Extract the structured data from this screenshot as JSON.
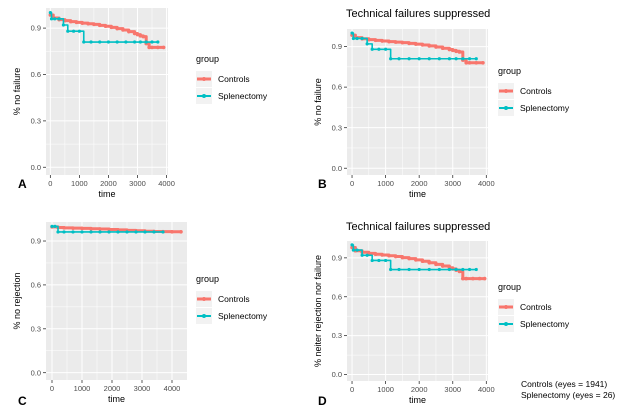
{
  "colors": {
    "controls": "#F8766D",
    "splenectomy": "#00BFC4",
    "panel_bg": "#EBEBEB",
    "grid": "#FFFFFF",
    "axis_text": "#4D4D4D",
    "title_text": "#000000"
  },
  "note": {
    "controls": "Controls (eyes = 1941)",
    "splenectomy": "Splenectomy (eyes = 26)"
  },
  "chart_data": [
    {
      "panel_label": "A",
      "type": "line",
      "title": "",
      "xlabel": "time",
      "ylabel": "% no failure",
      "xlim": [
        -150,
        4050
      ],
      "ylim": [
        -0.05,
        1.03
      ],
      "x_ticks": [
        0,
        1000,
        2000,
        3000,
        4000
      ],
      "y_ticks": [
        0.0,
        0.3,
        0.6,
        0.9
      ],
      "y_tick_labels": [
        "0.0",
        "0.3",
        "0.6",
        "0.9"
      ],
      "legend": {
        "title": "group",
        "entries": [
          "Controls",
          "Splenectomy"
        ]
      },
      "series": [
        {
          "name": "Controls",
          "x": [
            0,
            100,
            300,
            500,
            700,
            900,
            1100,
            1300,
            1500,
            1700,
            1900,
            2100,
            2300,
            2500,
            2700,
            2900,
            3000,
            3100,
            3200,
            3300,
            3400,
            3500,
            3700,
            3900
          ],
          "y": [
            0.985,
            0.965,
            0.955,
            0.948,
            0.942,
            0.937,
            0.932,
            0.928,
            0.924,
            0.918,
            0.912,
            0.905,
            0.897,
            0.888,
            0.877,
            0.865,
            0.858,
            0.85,
            0.845,
            0.8,
            0.775,
            0.775,
            0.775,
            0.775
          ]
        },
        {
          "name": "Splenectomy",
          "x": [
            0,
            40,
            150,
            300,
            450,
            600,
            800,
            1000,
            1150,
            1400,
            1700,
            2000,
            2300,
            2600,
            2900,
            3100,
            3300,
            3500,
            3700
          ],
          "y": [
            1.0,
            0.96,
            0.96,
            0.96,
            0.92,
            0.88,
            0.88,
            0.88,
            0.81,
            0.81,
            0.81,
            0.81,
            0.81,
            0.81,
            0.81,
            0.81,
            0.81,
            0.81,
            0.81
          ]
        }
      ]
    },
    {
      "panel_label": "B",
      "type": "line",
      "title": "Technical failures suppressed",
      "xlabel": "time",
      "ylabel": "% no failure",
      "xlim": [
        -150,
        4050
      ],
      "ylim": [
        -0.05,
        1.03
      ],
      "x_ticks": [
        0,
        1000,
        2000,
        3000,
        4000
      ],
      "y_ticks": [
        0.0,
        0.3,
        0.6,
        0.9
      ],
      "y_tick_labels": [
        "0.0",
        "0.3",
        "0.6",
        "0.9"
      ],
      "legend": {
        "title": "group",
        "entries": [
          "Controls",
          "Splenectomy"
        ]
      },
      "series": [
        {
          "name": "Controls",
          "x": [
            0,
            100,
            300,
            500,
            700,
            900,
            1100,
            1300,
            1500,
            1700,
            1900,
            2100,
            2300,
            2500,
            2700,
            2900,
            3000,
            3100,
            3200,
            3300,
            3400,
            3500,
            3700,
            3900
          ],
          "y": [
            0.985,
            0.966,
            0.958,
            0.951,
            0.946,
            0.941,
            0.937,
            0.933,
            0.929,
            0.924,
            0.918,
            0.912,
            0.905,
            0.897,
            0.888,
            0.878,
            0.872,
            0.865,
            0.86,
            0.8,
            0.78,
            0.78,
            0.78,
            0.78
          ]
        },
        {
          "name": "Splenectomy",
          "x": [
            0,
            40,
            150,
            300,
            450,
            600,
            800,
            1000,
            1150,
            1400,
            1700,
            2000,
            2300,
            2600,
            2900,
            3100,
            3300,
            3500,
            3700
          ],
          "y": [
            1.0,
            0.96,
            0.96,
            0.96,
            0.92,
            0.88,
            0.88,
            0.88,
            0.81,
            0.81,
            0.81,
            0.81,
            0.81,
            0.81,
            0.81,
            0.81,
            0.81,
            0.81,
            0.81
          ]
        }
      ]
    },
    {
      "panel_label": "C",
      "type": "line",
      "title": "",
      "xlabel": "time",
      "ylabel": "% no rejection",
      "xlim": [
        -200,
        4500
      ],
      "ylim": [
        -0.05,
        1.03
      ],
      "x_ticks": [
        0,
        1000,
        2000,
        3000,
        4000
      ],
      "y_ticks": [
        0.0,
        0.3,
        0.6,
        0.9
      ],
      "y_tick_labels": [
        "0.0",
        "0.3",
        "0.6",
        "0.9"
      ],
      "legend": {
        "title": "group",
        "entries": [
          "Controls",
          "Splenectomy"
        ]
      },
      "series": [
        {
          "name": "Controls",
          "x": [
            0,
            200,
            400,
            700,
            1000,
            1300,
            1600,
            1900,
            2200,
            2500,
            2800,
            3100,
            3400,
            3700,
            4000,
            4300
          ],
          "y": [
            0.997,
            0.992,
            0.99,
            0.988,
            0.986,
            0.984,
            0.982,
            0.979,
            0.976,
            0.973,
            0.97,
            0.967,
            0.965,
            0.964,
            0.963,
            0.963
          ]
        },
        {
          "name": "Splenectomy",
          "x": [
            0,
            100,
            200,
            400,
            700,
            1000,
            1300,
            1600,
            1900,
            2200,
            2500,
            2800,
            3100,
            3400,
            3700
          ],
          "y": [
            1.0,
            1.0,
            0.962,
            0.962,
            0.962,
            0.962,
            0.962,
            0.962,
            0.962,
            0.962,
            0.962,
            0.962,
            0.962,
            0.962,
            0.962
          ]
        }
      ]
    },
    {
      "panel_label": "D",
      "type": "line",
      "title": "Technical failures suppressed",
      "xlabel": "time",
      "ylabel": "% neiter rejection nor failure",
      "xlim": [
        -150,
        4050
      ],
      "ylim": [
        -0.05,
        1.03
      ],
      "x_ticks": [
        0,
        1000,
        2000,
        3000,
        4000
      ],
      "y_ticks": [
        0.0,
        0.3,
        0.6,
        0.9
      ],
      "y_tick_labels": [
        "0.0",
        "0.3",
        "0.6",
        "0.9"
      ],
      "legend": {
        "title": "group",
        "entries": [
          "Controls",
          "Splenectomy"
        ]
      },
      "series": [
        {
          "name": "Controls",
          "x": [
            0,
            100,
            300,
            500,
            700,
            900,
            1100,
            1300,
            1500,
            1700,
            1900,
            2100,
            2300,
            2500,
            2700,
            2900,
            3000,
            3100,
            3200,
            3300,
            3400,
            3600,
            3800,
            3950
          ],
          "y": [
            0.98,
            0.955,
            0.943,
            0.935,
            0.928,
            0.922,
            0.916,
            0.91,
            0.902,
            0.894,
            0.884,
            0.874,
            0.862,
            0.85,
            0.837,
            0.824,
            0.815,
            0.805,
            0.795,
            0.74,
            0.74,
            0.74,
            0.74,
            0.74
          ]
        },
        {
          "name": "Splenectomy",
          "x": [
            0,
            40,
            150,
            300,
            450,
            600,
            800,
            1000,
            1150,
            1400,
            1700,
            2000,
            2300,
            2600,
            2900,
            3100,
            3300,
            3500,
            3700
          ],
          "y": [
            1.0,
            0.96,
            0.96,
            0.92,
            0.92,
            0.88,
            0.88,
            0.88,
            0.81,
            0.81,
            0.81,
            0.81,
            0.81,
            0.81,
            0.81,
            0.81,
            0.81,
            0.81,
            0.81
          ]
        }
      ]
    }
  ]
}
